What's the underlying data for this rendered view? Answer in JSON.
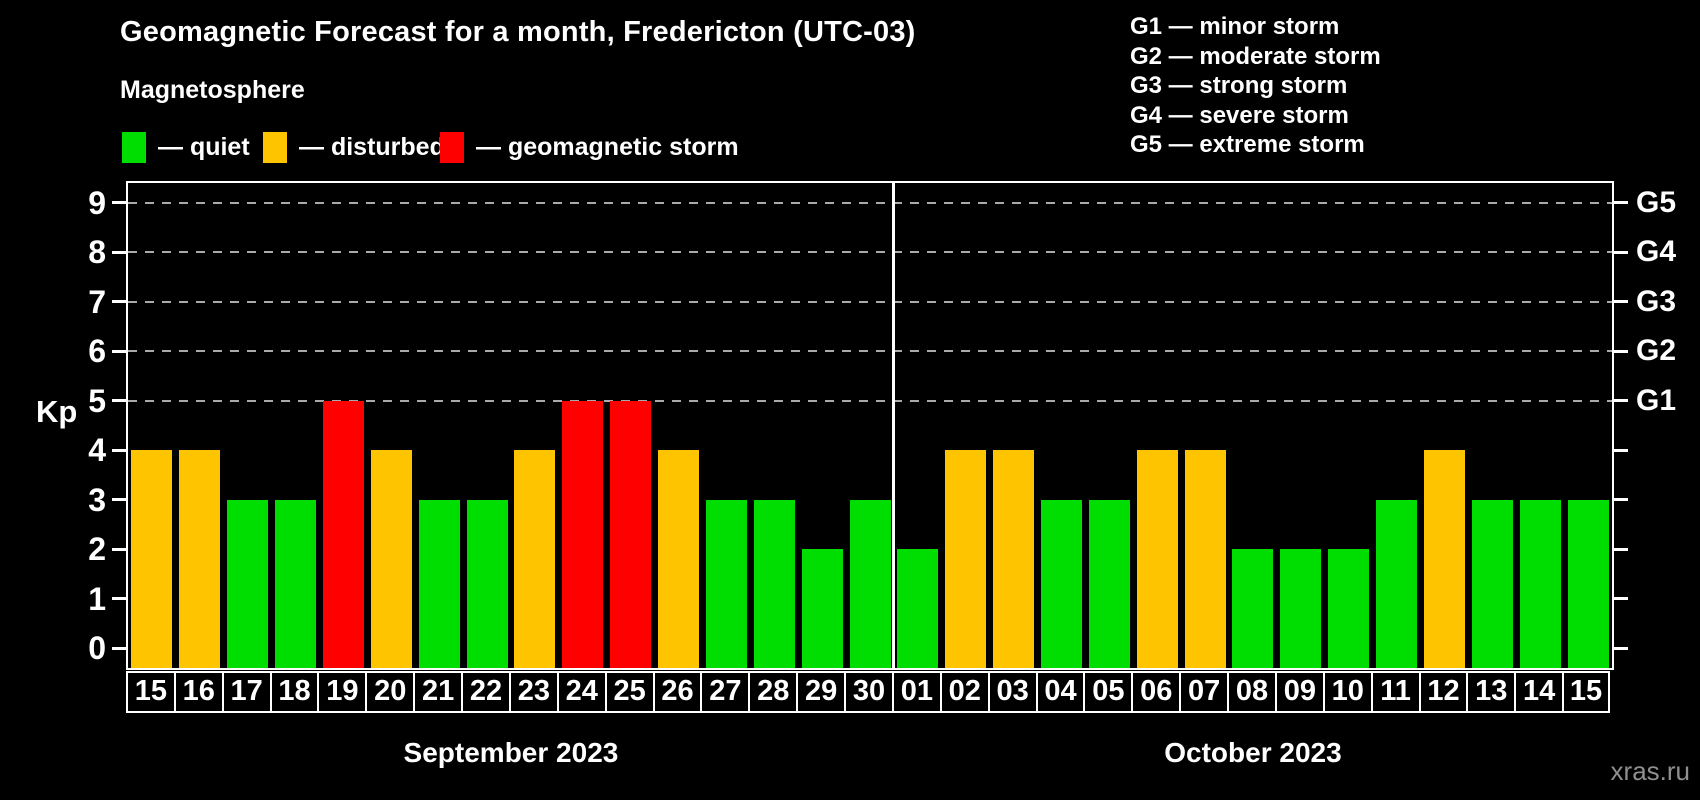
{
  "chart": {
    "title": "Geomagnetic Forecast for a month, Fredericton (UTC-03)",
    "subtitle": "Magnetosphere",
    "ylabel": "Kp",
    "watermark": "xras.ru"
  },
  "legend": [
    {
      "status": "quiet",
      "label": "— quiet",
      "color": "#00dd00"
    },
    {
      "status": "disturbed",
      "label": "— disturbed",
      "color": "#ffc400"
    },
    {
      "status": "storm",
      "label": "— geomagnetic storm",
      "color": "#ff0000"
    }
  ],
  "g_scale_legend": [
    "G1 — minor storm",
    "G2 — moderate storm",
    "G3 — strong storm",
    "G4 — severe storm",
    "G5 — extreme storm"
  ],
  "chart_data": {
    "type": "bar",
    "title": "Geomagnetic Forecast for a month, Fredericton (UTC-03)",
    "subtitle": "Magnetosphere",
    "ylabel": "Kp",
    "ylim": [
      0,
      9
    ],
    "yticks": [
      "0",
      "1",
      "2",
      "3",
      "4",
      "5",
      "6",
      "7",
      "8",
      "9"
    ],
    "gridlines_at": [
      5,
      6,
      7,
      8,
      9
    ],
    "grid": "dashed horizontal at storm levels only",
    "right_axis_ticks": [
      {
        "kp": 5,
        "label": "G1"
      },
      {
        "kp": 6,
        "label": "G2"
      },
      {
        "kp": 7,
        "label": "G3"
      },
      {
        "kp": 8,
        "label": "G4"
      },
      {
        "kp": 9,
        "label": "G5"
      }
    ],
    "colors": {
      "quiet": "#00dd00",
      "disturbed": "#ffc400",
      "storm": "#ff0000",
      "background": "#000000",
      "text": "#ffffff",
      "gridline": "#aaaaaa"
    },
    "months": [
      {
        "label": "September 2023",
        "start_index": 0,
        "num_days": 16
      },
      {
        "label": "October 2023",
        "start_index": 16,
        "num_days": 15
      }
    ],
    "series": [
      {
        "day": "15",
        "month": "September 2023",
        "kp": 4,
        "status": "disturbed"
      },
      {
        "day": "16",
        "month": "September 2023",
        "kp": 4,
        "status": "disturbed"
      },
      {
        "day": "17",
        "month": "September 2023",
        "kp": 3,
        "status": "quiet"
      },
      {
        "day": "18",
        "month": "September 2023",
        "kp": 3,
        "status": "quiet"
      },
      {
        "day": "19",
        "month": "September 2023",
        "kp": 5,
        "status": "storm"
      },
      {
        "day": "20",
        "month": "September 2023",
        "kp": 4,
        "status": "disturbed"
      },
      {
        "day": "21",
        "month": "September 2023",
        "kp": 3,
        "status": "quiet"
      },
      {
        "day": "22",
        "month": "September 2023",
        "kp": 3,
        "status": "quiet"
      },
      {
        "day": "23",
        "month": "September 2023",
        "kp": 4,
        "status": "disturbed"
      },
      {
        "day": "24",
        "month": "September 2023",
        "kp": 5,
        "status": "storm"
      },
      {
        "day": "25",
        "month": "September 2023",
        "kp": 5,
        "status": "storm"
      },
      {
        "day": "26",
        "month": "September 2023",
        "kp": 4,
        "status": "disturbed"
      },
      {
        "day": "27",
        "month": "September 2023",
        "kp": 3,
        "status": "quiet"
      },
      {
        "day": "28",
        "month": "September 2023",
        "kp": 3,
        "status": "quiet"
      },
      {
        "day": "29",
        "month": "September 2023",
        "kp": 2,
        "status": "quiet"
      },
      {
        "day": "30",
        "month": "September 2023",
        "kp": 3,
        "status": "quiet"
      },
      {
        "day": "01",
        "month": "October 2023",
        "kp": 2,
        "status": "quiet"
      },
      {
        "day": "02",
        "month": "October 2023",
        "kp": 4,
        "status": "disturbed"
      },
      {
        "day": "03",
        "month": "October 2023",
        "kp": 4,
        "status": "disturbed"
      },
      {
        "day": "04",
        "month": "October 2023",
        "kp": 3,
        "status": "quiet"
      },
      {
        "day": "05",
        "month": "October 2023",
        "kp": 3,
        "status": "quiet"
      },
      {
        "day": "06",
        "month": "October 2023",
        "kp": 4,
        "status": "disturbed"
      },
      {
        "day": "07",
        "month": "October 2023",
        "kp": 4,
        "status": "disturbed"
      },
      {
        "day": "08",
        "month": "October 2023",
        "kp": 2,
        "status": "quiet"
      },
      {
        "day": "09",
        "month": "October 2023",
        "kp": 2,
        "status": "quiet"
      },
      {
        "day": "10",
        "month": "October 2023",
        "kp": 2,
        "status": "quiet"
      },
      {
        "day": "11",
        "month": "October 2023",
        "kp": 3,
        "status": "quiet"
      },
      {
        "day": "12",
        "month": "October 2023",
        "kp": 4,
        "status": "disturbed"
      },
      {
        "day": "13",
        "month": "October 2023",
        "kp": 3,
        "status": "quiet"
      },
      {
        "day": "14",
        "month": "October 2023",
        "kp": 3,
        "status": "quiet"
      },
      {
        "day": "15",
        "month": "October 2023",
        "kp": 3,
        "status": "quiet"
      }
    ]
  }
}
